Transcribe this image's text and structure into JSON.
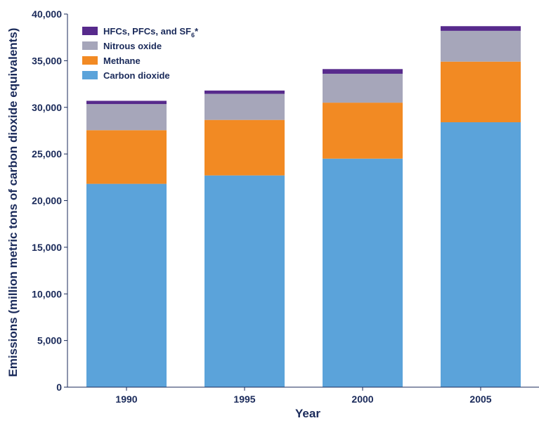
{
  "chart_data": {
    "type": "bar",
    "stacked": true,
    "categories": [
      "1990",
      "1995",
      "2000",
      "2005"
    ],
    "series": [
      {
        "name": "Carbon dioxide",
        "color": "#5ba3da",
        "values": [
          21800,
          22700,
          24500,
          28400
        ]
      },
      {
        "name": "Methane",
        "color": "#f28a23",
        "values": [
          5750,
          5950,
          6000,
          6500
        ]
      },
      {
        "name": "Nitrous oxide",
        "color": "#a6a6ba",
        "values": [
          2800,
          2800,
          3100,
          3300
        ]
      },
      {
        "name": "HFCs, PFCs, and SF6*",
        "color": "#572a8c",
        "values": [
          350,
          350,
          500,
          500
        ]
      }
    ],
    "legend_labels": {
      "hfc_main": "HFCs, PFCs, and SF",
      "hfc_sub": "6",
      "hfc_star": "*"
    },
    "xlabel": "Year",
    "ylabel": "Emissions (million metric tons of carbon dioxide equivalents)",
    "ylim": [
      0,
      40000
    ],
    "yticks": [
      "0",
      "5,000",
      "10,000",
      "15,000",
      "20,000",
      "25,000",
      "30,000",
      "35,000",
      "40,000"
    ],
    "ytick_values": [
      0,
      5000,
      10000,
      15000,
      20000,
      25000,
      30000,
      35000,
      40000
    ],
    "grid": false,
    "legend_position": "top-left"
  }
}
